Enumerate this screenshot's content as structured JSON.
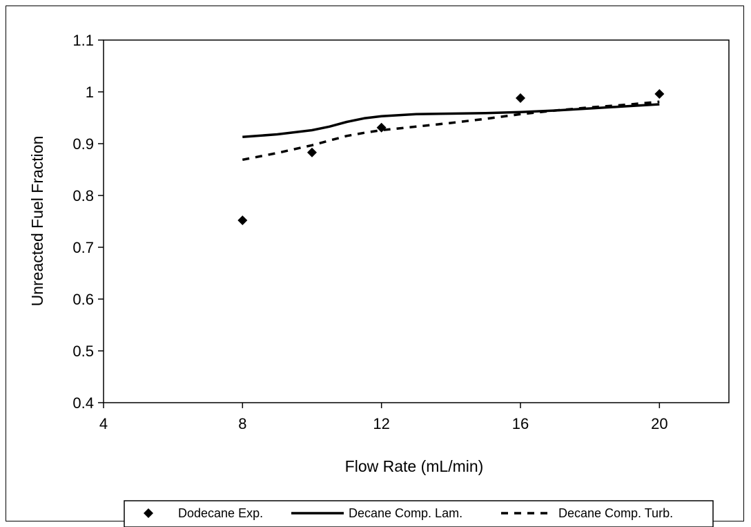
{
  "chart_data": {
    "type": "line",
    "title": "",
    "xlabel": "Flow Rate (mL/min)",
    "ylabel": "Unreacted Fuel Fraction",
    "xlim": [
      4,
      22
    ],
    "ylim": [
      0.4,
      1.1
    ],
    "x_ticks": [
      4,
      8,
      12,
      16,
      20
    ],
    "y_ticks": [
      0.4,
      0.5,
      0.6,
      0.7,
      0.8,
      0.9,
      1,
      1.1
    ],
    "x_tick_labels": [
      "4",
      "8",
      "12",
      "16",
      "20"
    ],
    "y_tick_labels": [
      "0.4",
      "0.5",
      "0.6",
      "0.7",
      "0.8",
      "0.9",
      "1",
      "1.1"
    ],
    "grid": false,
    "legend_position": "bottom",
    "series": [
      {
        "name": "Dodecane Exp.",
        "kind": "scatter",
        "marker": "diamond",
        "color": "#000000",
        "x": [
          8,
          10,
          12,
          16,
          20
        ],
        "y": [
          0.752,
          0.883,
          0.931,
          0.988,
          0.996
        ]
      },
      {
        "name": "Decane Comp. Lam.",
        "kind": "line",
        "style": "solid",
        "color": "#000000",
        "x": [
          8,
          9,
          10,
          10.5,
          11,
          11.5,
          12,
          13,
          14,
          15,
          16,
          17,
          18,
          19,
          20
        ],
        "y": [
          0.913,
          0.918,
          0.926,
          0.933,
          0.942,
          0.949,
          0.953,
          0.957,
          0.958,
          0.959,
          0.961,
          0.964,
          0.968,
          0.972,
          0.976
        ]
      },
      {
        "name": "Decane Comp. Turb.",
        "kind": "line",
        "style": "dashed",
        "color": "#000000",
        "x": [
          8,
          9,
          10,
          10.5,
          11,
          11.5,
          12,
          13,
          14,
          15,
          16,
          17,
          18,
          19,
          20
        ],
        "y": [
          0.869,
          0.882,
          0.897,
          0.906,
          0.915,
          0.921,
          0.926,
          0.933,
          0.94,
          0.948,
          0.957,
          0.964,
          0.97,
          0.975,
          0.981
        ]
      }
    ]
  }
}
